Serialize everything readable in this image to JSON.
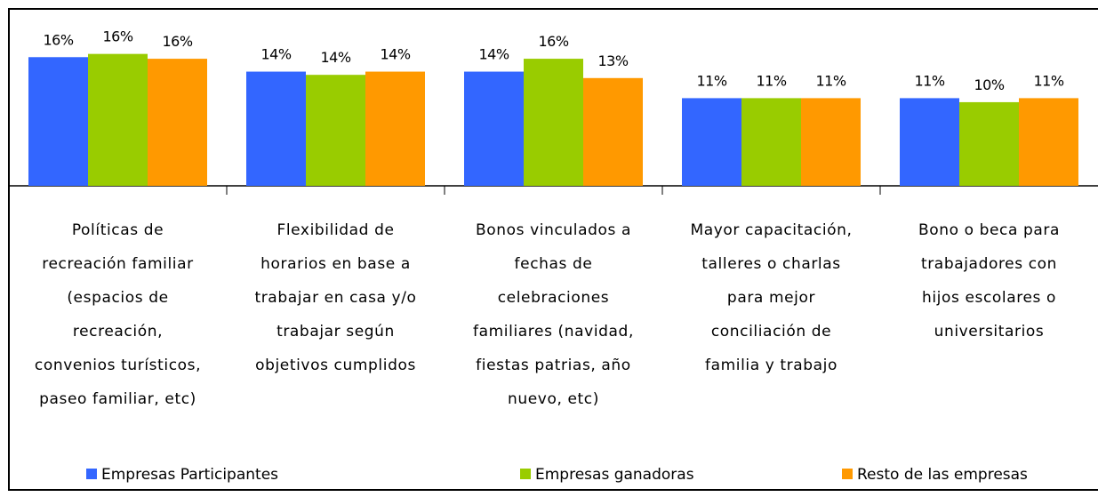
{
  "chart_data": {
    "type": "bar",
    "categories": [
      "Políticas de\nrecreación familiar\n(espacios de\nrecreación,\nconvenios turísticos,\npaseo familiar, etc)",
      "Flexibilidad de\nhorarios en base a\ntrabajar en casa y/o\ntrabajar según\nobjetivos cumplidos",
      "Bonos vinculados a\nfechas de\ncelebraciones\nfamiliares (navidad,\nfiestas patrias, año\nnuevo, etc)",
      "Mayor capacitación,\ntalleres o charlas\npara mejor\nconciliación de\nfamilia y trabajo",
      "Bono o beca para\ntrabajadores con\nhijos escolares o\nuniversitarios"
    ],
    "series": [
      {
        "name": "Empresas Participantes",
        "color": "#3366ff",
        "values": [
          16,
          14.2,
          14.2,
          10.9,
          10.9
        ],
        "value_labels": [
          "16%",
          "14%",
          "14%",
          "11%",
          "11%"
        ]
      },
      {
        "name": "Empresas ganadoras",
        "color": "#99cc00",
        "values": [
          16.4,
          13.8,
          15.8,
          10.9,
          10.4
        ],
        "value_labels": [
          "16%",
          "14%",
          "16%",
          "11%",
          "10%"
        ]
      },
      {
        "name": "Resto de las empresas",
        "color": "#ff9900",
        "values": [
          15.8,
          14.2,
          13.4,
          10.9,
          10.9
        ],
        "value_labels": [
          "16%",
          "14%",
          "13%",
          "11%",
          "11%"
        ]
      }
    ],
    "ylim": [
      0,
      22
    ],
    "legend": "bottom"
  }
}
